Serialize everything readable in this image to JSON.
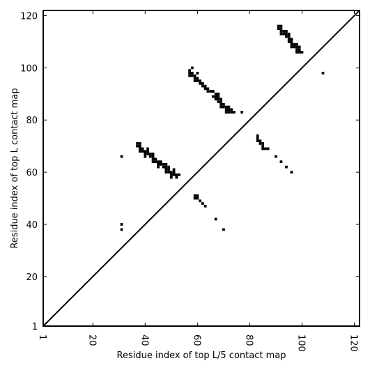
{
  "chart_data": {
    "type": "scatter",
    "title": "",
    "xlabel": "Residue index of top L/5 contact map",
    "ylabel": "Residue index of top L contact map",
    "xlim": [
      1,
      122
    ],
    "ylim": [
      1,
      122
    ],
    "x_ticks": [
      "1",
      "20",
      "40",
      "60",
      "80",
      "100",
      "120"
    ],
    "x_tick_values": [
      1,
      20,
      40,
      60,
      80,
      100,
      120
    ],
    "y_ticks": [
      "1",
      "20",
      "40",
      "60",
      "80",
      "100",
      "120"
    ],
    "y_tick_values": [
      1,
      20,
      40,
      60,
      80,
      100,
      120
    ],
    "x_tick_rotation_deg": -90,
    "grid": false,
    "legend": false,
    "diagonal_line": {
      "from": [
        1,
        1
      ],
      "to": [
        122,
        122
      ],
      "color": "#000000"
    },
    "marker": {
      "shape": "square",
      "color": "#000000"
    },
    "series": [
      {
        "points": [
          [
            31,
            66
          ],
          [
            31,
            40
          ],
          [
            31,
            38
          ],
          [
            37,
            71
          ],
          [
            38,
            71
          ],
          [
            37,
            70
          ],
          [
            38,
            70
          ],
          [
            38,
            69
          ],
          [
            39,
            69
          ],
          [
            38,
            68
          ],
          [
            39,
            68
          ],
          [
            40,
            68
          ],
          [
            41,
            69
          ],
          [
            41,
            68
          ],
          [
            41,
            67
          ],
          [
            40,
            67
          ],
          [
            40,
            66
          ],
          [
            42,
            67
          ],
          [
            43,
            67
          ],
          [
            42,
            66
          ],
          [
            43,
            66
          ],
          [
            43,
            65
          ],
          [
            44,
            65
          ],
          [
            43,
            64
          ],
          [
            44,
            64
          ],
          [
            45,
            64
          ],
          [
            46,
            64
          ],
          [
            45,
            63
          ],
          [
            46,
            63
          ],
          [
            45,
            62
          ],
          [
            47,
            63
          ],
          [
            48,
            63
          ],
          [
            47,
            62
          ],
          [
            48,
            62
          ],
          [
            48,
            61
          ],
          [
            49,
            61
          ],
          [
            48,
            60
          ],
          [
            49,
            60
          ],
          [
            49,
            62
          ],
          [
            50,
            60
          ],
          [
            51,
            60
          ],
          [
            51,
            61
          ],
          [
            50,
            59
          ],
          [
            51,
            59
          ],
          [
            52,
            59
          ],
          [
            53,
            59
          ],
          [
            50,
            58
          ],
          [
            52,
            58
          ],
          [
            57,
            99
          ],
          [
            57,
            98
          ],
          [
            58,
            98
          ],
          [
            58,
            100
          ],
          [
            57,
            97
          ],
          [
            58,
            97
          ],
          [
            59,
            97
          ],
          [
            60,
            98
          ],
          [
            59,
            96
          ],
          [
            60,
            96
          ],
          [
            59,
            95
          ],
          [
            60,
            95
          ],
          [
            61,
            95
          ],
          [
            61,
            94
          ],
          [
            62,
            94
          ],
          [
            62,
            93
          ],
          [
            63,
            93
          ],
          [
            63,
            92
          ],
          [
            64,
            92
          ],
          [
            64,
            91
          ],
          [
            65,
            91
          ],
          [
            66,
            91
          ],
          [
            67,
            90
          ],
          [
            68,
            90
          ],
          [
            66,
            89
          ],
          [
            67,
            89
          ],
          [
            68,
            89
          ],
          [
            67,
            88
          ],
          [
            68,
            88
          ],
          [
            69,
            88
          ],
          [
            68,
            87
          ],
          [
            69,
            87
          ],
          [
            69,
            86
          ],
          [
            70,
            86
          ],
          [
            69,
            85
          ],
          [
            70,
            85
          ],
          [
            71,
            85
          ],
          [
            72,
            85
          ],
          [
            71,
            84
          ],
          [
            72,
            84
          ],
          [
            73,
            84
          ],
          [
            71,
            83
          ],
          [
            72,
            83
          ],
          [
            73,
            83
          ],
          [
            74,
            83
          ],
          [
            77,
            83
          ],
          [
            59,
            51
          ],
          [
            60,
            51
          ],
          [
            59,
            50
          ],
          [
            60,
            50
          ],
          [
            61,
            49
          ],
          [
            62,
            48
          ],
          [
            63,
            47
          ],
          [
            67,
            42
          ],
          [
            70,
            38
          ],
          [
            83,
            74
          ],
          [
            83,
            73
          ],
          [
            83,
            72
          ],
          [
            84,
            72
          ],
          [
            84,
            71
          ],
          [
            85,
            71
          ],
          [
            85,
            70
          ],
          [
            85,
            69
          ],
          [
            86,
            69
          ],
          [
            87,
            69
          ],
          [
            90,
            66
          ],
          [
            92,
            64
          ],
          [
            94,
            62
          ],
          [
            96,
            60
          ],
          [
            91,
            116
          ],
          [
            92,
            116
          ],
          [
            91,
            115
          ],
          [
            92,
            115
          ],
          [
            92,
            114
          ],
          [
            93,
            114
          ],
          [
            94,
            114
          ],
          [
            92,
            113
          ],
          [
            93,
            113
          ],
          [
            94,
            113
          ],
          [
            95,
            113
          ],
          [
            94,
            112
          ],
          [
            95,
            112
          ],
          [
            95,
            111
          ],
          [
            96,
            111
          ],
          [
            95,
            110
          ],
          [
            96,
            110
          ],
          [
            96,
            109
          ],
          [
            97,
            109
          ],
          [
            98,
            109
          ],
          [
            96,
            108
          ],
          [
            97,
            108
          ],
          [
            98,
            108
          ],
          [
            99,
            108
          ],
          [
            98,
            107
          ],
          [
            99,
            107
          ],
          [
            98,
            106
          ],
          [
            99,
            106
          ],
          [
            100,
            106
          ],
          [
            108,
            98
          ]
        ]
      }
    ]
  }
}
